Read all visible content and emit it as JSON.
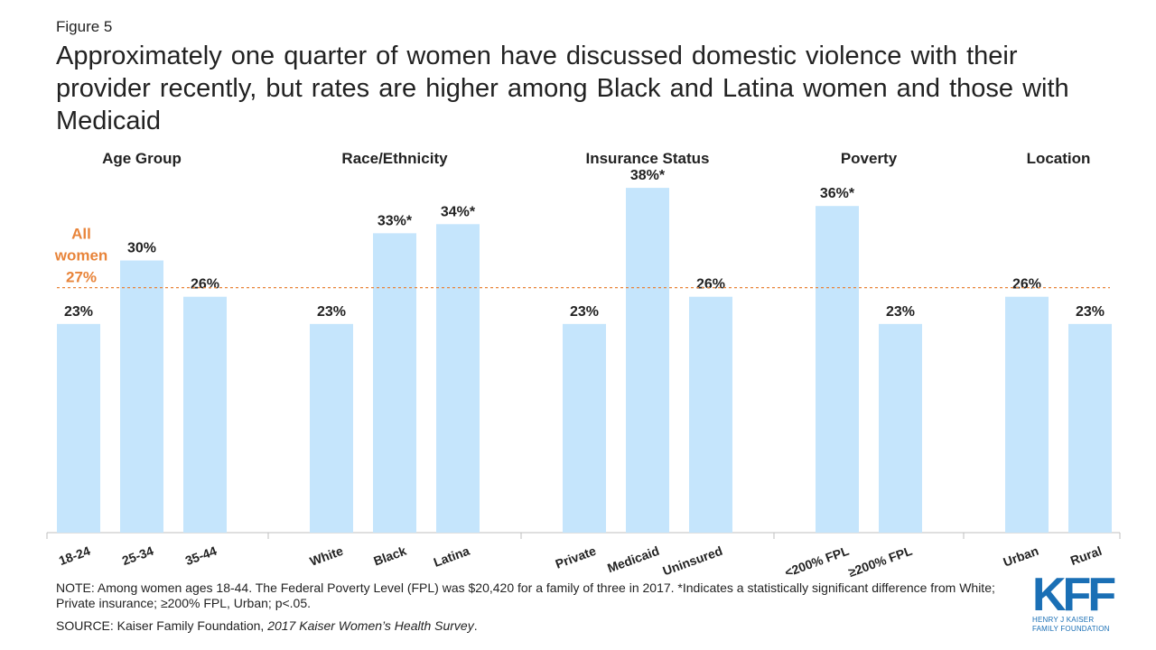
{
  "figure_label": "Figure 5",
  "title": "Approximately one quarter of women have discussed domestic violence with their provider recently, but rates are higher among Black and Latina women and those with Medicaid",
  "note": "NOTE: Among women ages 18-44. The Federal Poverty Level (FPL) was $20,420 for a family of three in 2017. *Indicates a statistically significant difference from White; Private insurance; ≥200% FPL, Urban; p<.05.",
  "source_prefix": "SOURCE: Kaiser Family Foundation, ",
  "source_title": "2017 Kaiser Women’s Health Survey",
  "source_suffix": ".",
  "logo": {
    "word": "KFF",
    "line1": "HENRY J KAISER",
    "line2": "FAMILY FOUNDATION"
  },
  "colors": {
    "bar": "#c5e5fc",
    "reference": "#e8843a",
    "text": "#222222",
    "axis": "#bfbfbf",
    "logo": "#1a6fb5"
  },
  "chart_data": {
    "type": "bar",
    "ylim": [
      0,
      45
    ],
    "grid": false,
    "reference_line": {
      "label_lines": [
        "All",
        "women",
        "27%"
      ],
      "value": 27
    },
    "groups": [
      {
        "name": "Age Group",
        "categories": [
          "18-24",
          "25-34",
          "35-44"
        ],
        "values": [
          23,
          30,
          26
        ],
        "labels": [
          "23%",
          "30%",
          "26%"
        ]
      },
      {
        "name": "Race/Ethnicity",
        "categories": [
          "White",
          "Black",
          "Latina"
        ],
        "values": [
          23,
          33,
          34
        ],
        "labels": [
          "23%",
          "33%*",
          "34%*"
        ]
      },
      {
        "name": "Insurance Status",
        "categories": [
          "Private",
          "Medicaid",
          "Uninsured"
        ],
        "values": [
          23,
          38,
          26
        ],
        "labels": [
          "23%",
          "38%*",
          "26%"
        ]
      },
      {
        "name": "Poverty",
        "categories": [
          "<200% FPL",
          "≥200% FPL"
        ],
        "values": [
          36,
          23
        ],
        "labels": [
          "36%*",
          "23%"
        ]
      },
      {
        "name": "Location",
        "categories": [
          "Urban",
          "Rural"
        ],
        "values": [
          26,
          23
        ],
        "labels": [
          "26%",
          "23%"
        ]
      }
    ]
  }
}
